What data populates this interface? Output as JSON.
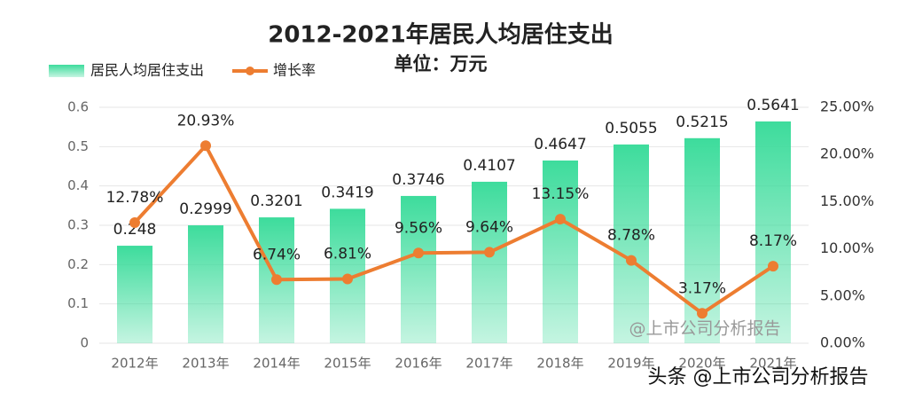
{
  "chart_data": {
    "type": "bar_line",
    "title": "2012-2021年居民人均居住支出",
    "subtitle": "单位：万元",
    "categories": [
      "2012年",
      "2013年",
      "2014年",
      "2015年",
      "2016年",
      "2017年",
      "2018年",
      "2019年",
      "2020年",
      "2021年"
    ],
    "series": [
      {
        "name": "居民人均居住支出",
        "color": "#3ddc9c",
        "values": [
          0.248,
          0.2999,
          0.3201,
          0.3419,
          0.3746,
          0.4107,
          0.4647,
          0.5055,
          0.5215,
          0.5641
        ]
      },
      {
        "name": "增长率",
        "color": "#ed7d31",
        "axis": "y2",
        "values": [
          12.78,
          20.93,
          6.74,
          6.81,
          9.56,
          9.64,
          13.15,
          8.78,
          3.17,
          8.17
        ],
        "value_labels": [
          "12.78%",
          "20.93%",
          "6.74%",
          "6.81%",
          "9.56%",
          "9.64%",
          "13.15%",
          "8.78%",
          "3.17%",
          "8.17%"
        ]
      }
    ],
    "ylim": [
      0,
      0.6
    ],
    "yticks": [
      0,
      0.1,
      0.2,
      0.3,
      0.4,
      0.5,
      0.6
    ],
    "y2lim": [
      0,
      25
    ],
    "y2ticks": [
      {
        "value": 0,
        "label": "0.00%"
      },
      {
        "value": 5,
        "label": "5.00%"
      },
      {
        "value": 10,
        "label": "10.00%"
      },
      {
        "value": 15,
        "label": "15.00%"
      },
      {
        "value": 20,
        "label": "20.00%"
      },
      {
        "value": 25,
        "label": "25.00%"
      }
    ],
    "grid": true,
    "legend": "top-left",
    "annotations": [
      "@上市公司分析报告",
      "头条 @上市公司分析报告"
    ]
  }
}
